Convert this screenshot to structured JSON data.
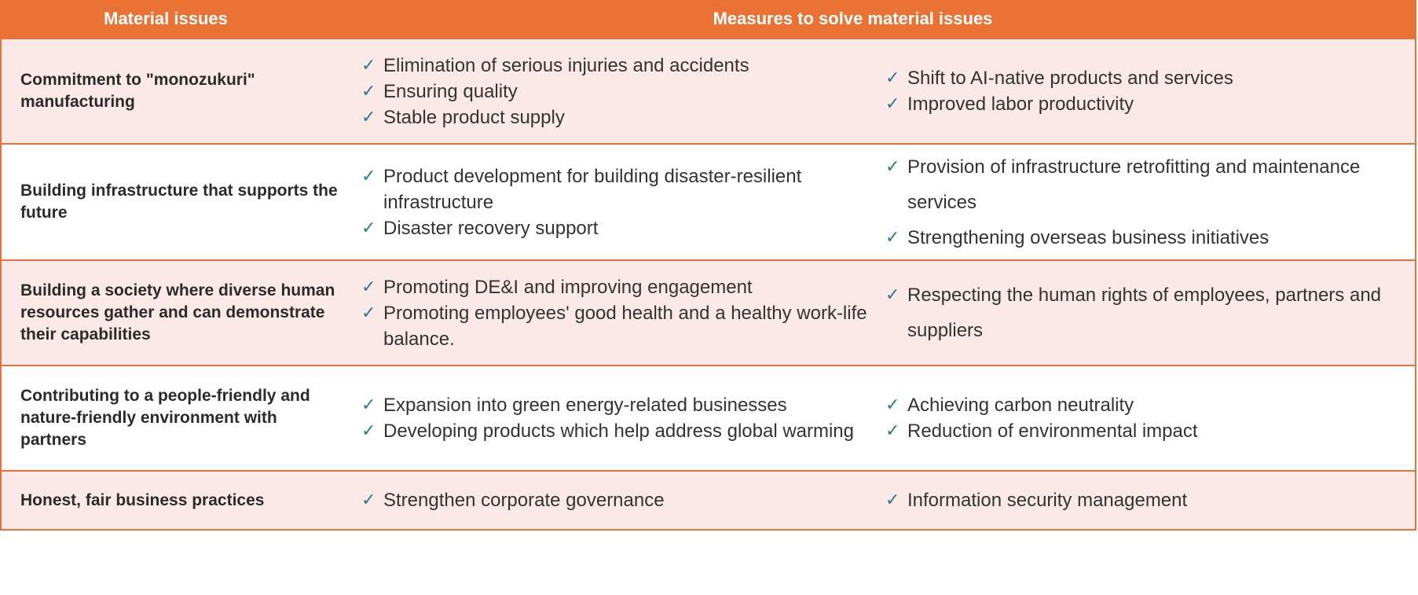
{
  "header": {
    "issues": "Material issues",
    "measures": "Measures to solve material issues"
  },
  "rows": [
    {
      "issue": "Commitment to \"monozukuri\" manufacturing",
      "mid": [
        "Elimination of serious injuries and accidents",
        "Ensuring quality",
        "Stable product supply"
      ],
      "right": [
        "Shift to AI-native products and services",
        "Improved labor productivity"
      ]
    },
    {
      "issue": "Building infrastructure that supports the future",
      "mid": [
        "Product development for building disaster-resilient infrastructure",
        "Disaster recovery support"
      ],
      "right": [
        "Provision of infrastructure retrofitting and maintenance services",
        "Strengthening overseas business initiatives"
      ]
    },
    {
      "issue": "Building a society where diverse human resources gather and can demonstrate their capabilities",
      "mid": [
        "Promoting DE&I and improving engagement",
        "Promoting employees' good health and a healthy work-life balance."
      ],
      "right": [
        "Respecting the human rights of employees, partners and suppliers"
      ]
    },
    {
      "issue": "Contributing to a people-friendly and nature-friendly environment with partners",
      "mid": [
        "Expansion into green energy-related businesses",
        "Developing products which help address global warming"
      ],
      "right": [
        "Achieving carbon neutrality",
        "Reduction of environmental impact"
      ]
    },
    {
      "issue": "Honest, fair business practices",
      "mid": [
        "Strengthen corporate governance"
      ],
      "right": [
        "Information security management"
      ]
    }
  ],
  "icons": {
    "bullet": "checkmark-icon"
  },
  "colors": {
    "header": "#ea7234",
    "border": "#e8733a",
    "pink_row": "#fbe9e7",
    "check": "#2f7a8c"
  }
}
